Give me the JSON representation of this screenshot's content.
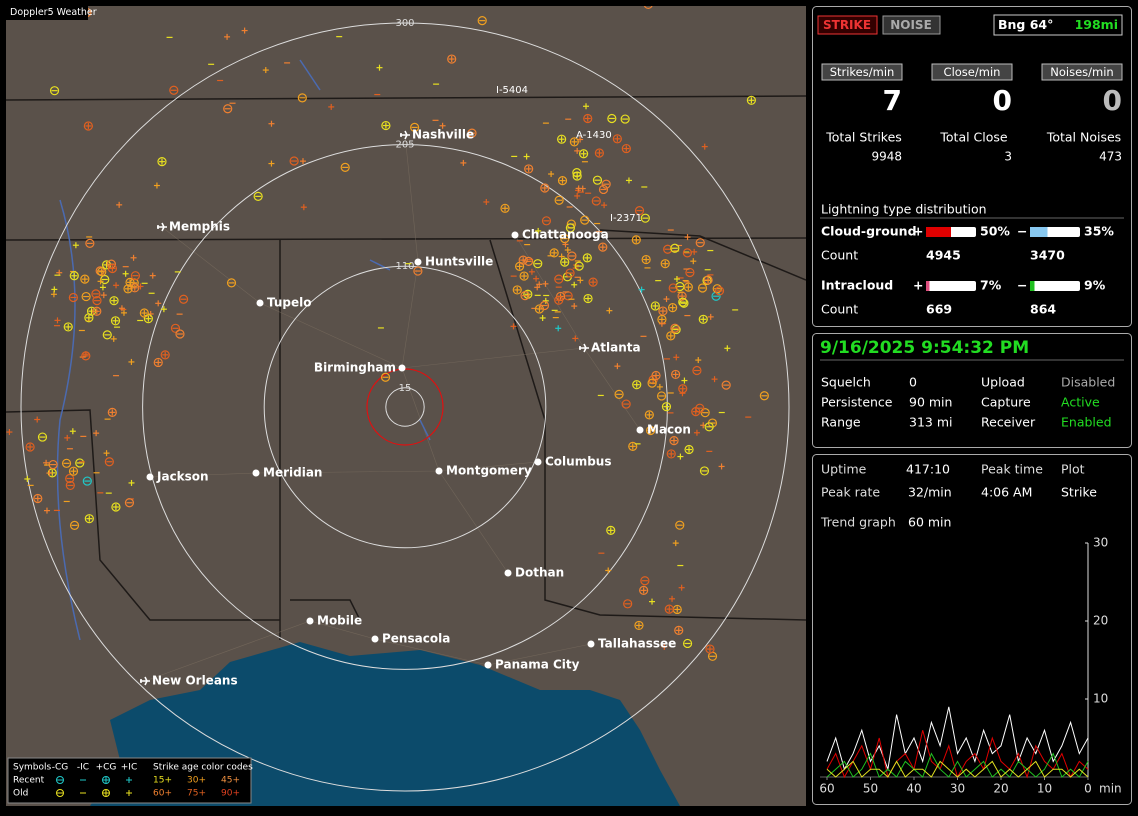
{
  "window": {
    "title": "Doppler5 Weather"
  },
  "map": {
    "rings": [
      300,
      205,
      110,
      15
    ],
    "highways": [
      "I-5404",
      "A-1430",
      "I-2371"
    ],
    "cities": [
      "Nashville",
      "Memphis",
      "Chattanooga",
      "Huntsville",
      "Tupelo",
      "Atlanta",
      "Birmingham",
      "Macon",
      "Jackson",
      "Meridian",
      "Montgomery",
      "Columbus",
      "Dothan",
      "Mobile",
      "Pensacola",
      "Tallahassee",
      "Panama City",
      "New Orleans"
    ],
    "legend": {
      "title": "Symbols",
      "types": [
        "-CG",
        "-IC",
        "+CG",
        "+IC"
      ],
      "rows": [
        "Recent",
        "Old"
      ],
      "age_title": "Strike age color codes",
      "ages": [
        [
          "15+",
          "30+",
          "45+"
        ],
        [
          "60+",
          "75+",
          "90+"
        ]
      ]
    }
  },
  "panel": {
    "modes": [
      "STRIKE",
      "NOISE"
    ],
    "bearing": "Bng 64°",
    "distance": "198mi",
    "rates": [
      {
        "label": "Strikes/min",
        "value": 7
      },
      {
        "label": "Close/min",
        "value": 0
      },
      {
        "label": "Noises/min",
        "value": 0
      }
    ],
    "totals": [
      {
        "label": "Total Strikes",
        "value": 9948
      },
      {
        "label": "Total Close",
        "value": 3
      },
      {
        "label": "Total Noises",
        "value": 473
      }
    ],
    "distribution": {
      "title": "Lightning type distribution",
      "count_label": "Count",
      "rows": [
        {
          "name": "Cloud-ground",
          "plus": {
            "sign": "+",
            "value": 50,
            "label": "50%",
            "count": 4945,
            "color": "#e00000"
          },
          "minus": {
            "sign": "−",
            "value": 35,
            "label": "35%",
            "count": 3470,
            "color": "#88c8f0"
          }
        },
        {
          "name": "Intracloud",
          "plus": {
            "sign": "+",
            "value": 7,
            "label": "7%",
            "count": 669,
            "color": "#e05080"
          },
          "minus": {
            "sign": "−",
            "value": 9,
            "label": "9%",
            "count": 864,
            "color": "#20c020"
          }
        }
      ]
    }
  },
  "status": {
    "datetime": "9/16/2025 9:54:32 PM",
    "items": [
      [
        "Squelch",
        0
      ],
      [
        "Persistence",
        "90 min"
      ],
      [
        "Range",
        "313 mi"
      ],
      [
        "Upload",
        "Disabled"
      ],
      [
        "Capture",
        "Active"
      ],
      [
        "Receiver",
        "Enabled"
      ]
    ]
  },
  "stats": {
    "items": [
      [
        "Uptime",
        "417:10"
      ],
      [
        "Peak time",
        "4:06 AM"
      ],
      [
        "Plot",
        "Strike"
      ],
      [
        "Peak rate",
        "32/min"
      ],
      [
        "Trend graph",
        "60 min"
      ]
    ]
  },
  "trend": {
    "type": "line",
    "x_unit": "min",
    "xlim": [
      60,
      0
    ],
    "xticks": [
      60,
      50,
      40,
      30,
      20,
      10,
      0
    ],
    "ylim": [
      0,
      30
    ],
    "yticks": [
      10,
      20,
      30
    ],
    "x": [
      60,
      58,
      56,
      54,
      52,
      50,
      48,
      46,
      44,
      42,
      40,
      38,
      36,
      34,
      32,
      30,
      28,
      26,
      24,
      22,
      20,
      18,
      16,
      14,
      12,
      10,
      8,
      6,
      4,
      2,
      0
    ],
    "series": [
      {
        "color": "#ffffff",
        "values": [
          2,
          5,
          1,
          3,
          6,
          2,
          4,
          1,
          8,
          3,
          5,
          2,
          7,
          4,
          9,
          3,
          5,
          2,
          6,
          3,
          4,
          8,
          2,
          5,
          3,
          6,
          2,
          4,
          7,
          3,
          5
        ]
      },
      {
        "color": "#e00000",
        "values": [
          1,
          3,
          0,
          2,
          4,
          1,
          5,
          0,
          2,
          3,
          1,
          6,
          2,
          1,
          4,
          0,
          2,
          3,
          1,
          5,
          2,
          1,
          3,
          0,
          4,
          2,
          1,
          3,
          0,
          2,
          1
        ]
      },
      {
        "color": "#20c020",
        "values": [
          0,
          1,
          2,
          0,
          1,
          3,
          0,
          1,
          0,
          2,
          1,
          0,
          3,
          1,
          0,
          2,
          0,
          1,
          2,
          0,
          1,
          0,
          2,
          1,
          0,
          1,
          3,
          0,
          1,
          0,
          2
        ]
      },
      {
        "color": "#e0e020",
        "values": [
          1,
          0,
          1,
          2,
          0,
          1,
          1,
          0,
          2,
          0,
          1,
          1,
          0,
          2,
          1,
          0,
          1,
          0,
          1,
          2,
          0,
          1,
          0,
          1,
          2,
          0,
          1,
          1,
          0,
          1,
          0
        ]
      }
    ]
  }
}
